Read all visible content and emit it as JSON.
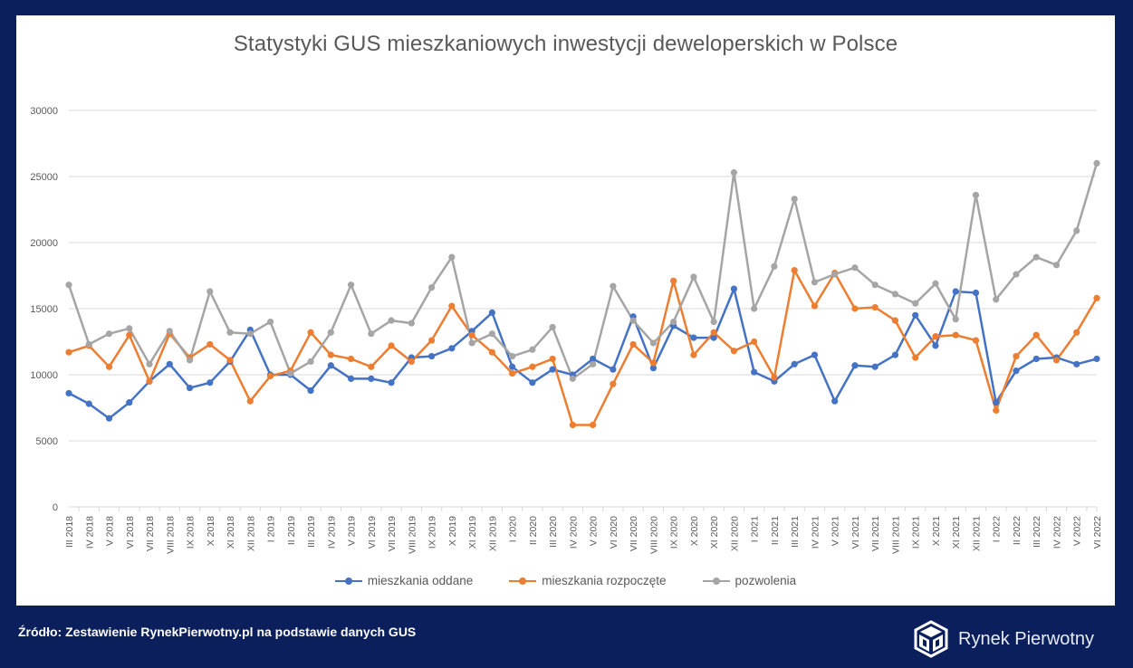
{
  "chart_data": {
    "type": "line",
    "title": "Statystyki GUS mieszkaniowych inwestycji deweloperskich w Polsce",
    "ylim": [
      0,
      30000
    ],
    "yticks": [
      0,
      5000,
      10000,
      15000,
      20000,
      25000,
      30000
    ],
    "legend_position": "bottom",
    "categories": [
      "III 2018",
      "IV 2018",
      "V 2018",
      "VI 2018",
      "VII 2018",
      "VIII 2018",
      "IX 2018",
      "X 2018",
      "XI 2018",
      "XII 2018",
      "I 2019",
      "II 2019",
      "III 2019",
      "IV 2019",
      "V 2019",
      "VI 2019",
      "VII 2019",
      "VIII 2019",
      "IX 2019",
      "X 2019",
      "XI 2019",
      "XII 2019",
      "I 2020",
      "II 2020",
      "III 2020",
      "IV 2020",
      "V 2020",
      "VI 2020",
      "VII 2020",
      "VIII 2020",
      "IX 2020",
      "X 2020",
      "XI 2020",
      "XII 2020",
      "I 2021",
      "II 2021",
      "III 2021",
      "IV 2021",
      "V 2021",
      "VI 2021",
      "VII 2021",
      "VIII 2021",
      "IX 2021",
      "X 2021",
      "XI 2021",
      "XII 2021",
      "I 2022",
      "II 2022",
      "III 2022",
      "IV 2022",
      "V 2022",
      "VI 2022"
    ],
    "series": [
      {
        "name": "mieszkania oddane",
        "color": "#4472c4",
        "values": [
          8600,
          7800,
          6700,
          7900,
          9500,
          10800,
          9000,
          9400,
          11000,
          13400,
          10000,
          10000,
          8800,
          10700,
          9700,
          9700,
          9400,
          11300,
          11400,
          12000,
          13300,
          14700,
          10600,
          9400,
          10400,
          10000,
          11200,
          10400,
          14400,
          10500,
          13700,
          12800,
          12800,
          16500,
          10200,
          9500,
          10800,
          11500,
          8000,
          10700,
          10600,
          11500,
          14500,
          12200,
          16300,
          16200,
          7900,
          10300,
          11200,
          11300,
          10800,
          11200
        ]
      },
      {
        "name": "mieszkania rozpoczęte",
        "color": "#ed7d31",
        "values": [
          11700,
          12200,
          10600,
          13000,
          9500,
          13100,
          11300,
          12300,
          11100,
          8000,
          9900,
          10300,
          13200,
          11500,
          11200,
          10600,
          12200,
          11000,
          12600,
          15200,
          13000,
          11700,
          10100,
          10600,
          11200,
          6200,
          6200,
          9300,
          12300,
          10900,
          17100,
          11500,
          13200,
          11800,
          12500,
          9800,
          17900,
          15200,
          17700,
          15000,
          15100,
          14100,
          11300,
          12900,
          13000,
          12600,
          7300,
          11400,
          13000,
          11100,
          13200,
          15800
        ]
      },
      {
        "name": "pozwolenia",
        "color": "#a5a5a5",
        "values": [
          16800,
          12300,
          13100,
          13500,
          10800,
          13300,
          11100,
          16300,
          13200,
          13100,
          14000,
          10100,
          11000,
          13200,
          16800,
          13100,
          14100,
          13900,
          16600,
          18900,
          12400,
          13100,
          11400,
          11900,
          13600,
          9700,
          10800,
          16700,
          14100,
          12400,
          14000,
          17400,
          14000,
          25300,
          15000,
          18200,
          23300,
          17000,
          17600,
          18100,
          16800,
          16100,
          15400,
          16900,
          14200,
          23600,
          15700,
          17600,
          18900,
          18300,
          20900,
          26000
        ]
      }
    ]
  },
  "footer": {
    "source": "Źródło: Zestawienie RynekPierwotny.pl na podstawie danych GUS",
    "brand": "Rynek Pierwotny"
  }
}
